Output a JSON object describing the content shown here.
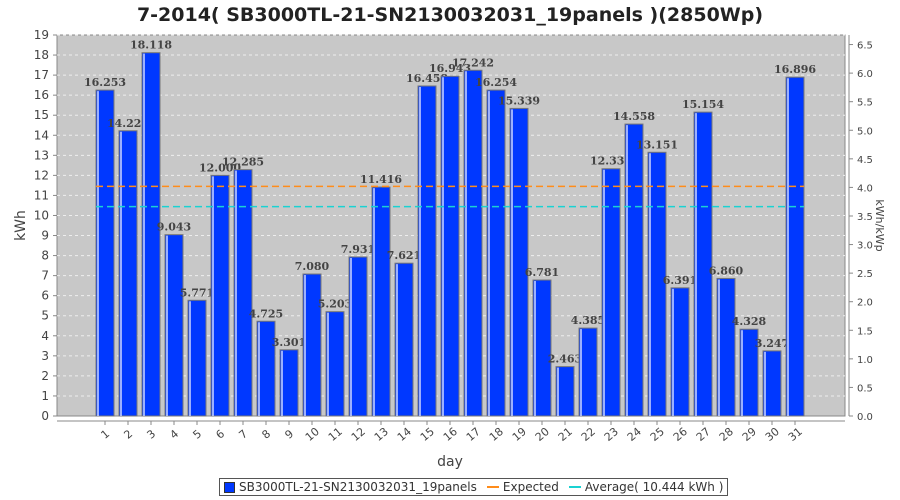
{
  "chart_data": {
    "type": "bar",
    "title": "7-2014( SB3000TL-21-SN2130032031_19panels )(2850Wp)",
    "xlabel": "day",
    "ylabel": "kWh",
    "ylabel_right": "kWh/kWp",
    "ylim": [
      0,
      19
    ],
    "ylim_right": [
      0,
      6.667
    ],
    "yticks": [
      0,
      1,
      2,
      3,
      4,
      5,
      6,
      7,
      8,
      9,
      10,
      11,
      12,
      13,
      14,
      15,
      16,
      17,
      18,
      19
    ],
    "yticks_right": [
      "0.0",
      "0.5",
      "1.0",
      "1.5",
      "2.0",
      "2.5",
      "3.0",
      "3.5",
      "4.0",
      "4.5",
      "5.0",
      "5.5",
      "6.0",
      "6.5"
    ],
    "categories": [
      "1",
      "2",
      "3",
      "4",
      "5",
      "6",
      "7",
      "8",
      "9",
      "10",
      "11",
      "12",
      "13",
      "14",
      "15",
      "16",
      "17",
      "18",
      "19",
      "20",
      "21",
      "22",
      "23",
      "24",
      "25",
      "26",
      "27",
      "28",
      "29",
      "30",
      "31"
    ],
    "series": [
      {
        "name": "SB3000TL-21-SN2130032031_19panels",
        "color": "#0038ff",
        "values": [
          16.253,
          14.224,
          18.118,
          9.043,
          5.771,
          12.0,
          12.285,
          4.725,
          3.301,
          7.08,
          5.203,
          7.931,
          11.416,
          7.621,
          16.458,
          16.943,
          17.242,
          16.254,
          15.339,
          6.781,
          2.463,
          4.385,
          12.331,
          14.558,
          13.151,
          6.391,
          15.154,
          6.86,
          4.328,
          3.247,
          16.896
        ],
        "labels": [
          "16.253",
          "14.224",
          "18.118",
          "9.043",
          "5.771",
          "12.000",
          "12.285",
          "4.725",
          "3.301",
          "7.080",
          "5.203",
          "7.931",
          "11.416",
          "7.621",
          "16.458",
          "16.943",
          "17.242",
          "16.254",
          "15.339",
          "6.781",
          "2.463",
          "4.385",
          "12.331",
          "14.558",
          "13.151",
          "6.391",
          "15.154",
          "6.860",
          "4.328",
          "3.247",
          "16.896"
        ]
      }
    ],
    "lines": [
      {
        "name": "Expected",
        "value": 11.45,
        "color": "#ff8c1a"
      },
      {
        "name": "Average( 10.444 kWh )",
        "value": 10.444,
        "color": "#1ad2d2"
      }
    ],
    "legend_position": "bottom",
    "grid": true
  }
}
